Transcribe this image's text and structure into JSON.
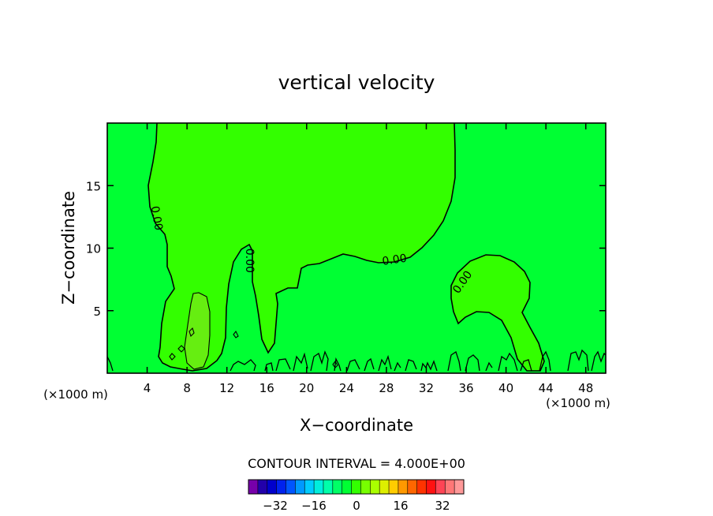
{
  "chart_data": {
    "type": "contour",
    "title": "vertical velocity",
    "xlabel": "X−coordinate",
    "ylabel": "Z−coordinate",
    "x_unit_left": "(×1000 m)",
    "x_unit_right": "(×1000 m)",
    "xlim": [
      0,
      50
    ],
    "ylim": [
      0,
      20
    ],
    "x_ticks": [
      4,
      8,
      12,
      16,
      20,
      24,
      28,
      32,
      36,
      40,
      44,
      48
    ],
    "y_ticks": [
      5,
      10,
      15
    ],
    "contour_labels": [
      {
        "text": "0.00",
        "x": 5.0,
        "y": 12.4,
        "angle": 80
      },
      {
        "text": "0.00",
        "x": 14.3,
        "y": 9.0,
        "angle": 90
      },
      {
        "text": "0.00",
        "x": 28.8,
        "y": 9.1,
        "angle": -8
      },
      {
        "text": "0.00",
        "x": 35.6,
        "y": 7.3,
        "angle": -55
      }
    ],
    "colors": {
      "background_field": "#00ff33",
      "positive_region": "#33ff00",
      "strong_positive_region": "#66ee11"
    },
    "contour_interval_text": "CONTOUR INTERVAL = 4.000E+00",
    "colorbar": {
      "colors": [
        "#7700aa",
        "#2200aa",
        "#0000cc",
        "#0022ee",
        "#0055ff",
        "#0099ff",
        "#00ccff",
        "#00eedd",
        "#00ffaa",
        "#00ff66",
        "#00ff33",
        "#33ff00",
        "#77ff00",
        "#aaff00",
        "#ddee00",
        "#ffcc00",
        "#ff9900",
        "#ff6600",
        "#ff3300",
        "#ff1111",
        "#ff4455",
        "#ff7777",
        "#ff9999"
      ],
      "tick_labels": [
        "−32",
        "−16",
        "0",
        "16",
        "32"
      ]
    }
  }
}
